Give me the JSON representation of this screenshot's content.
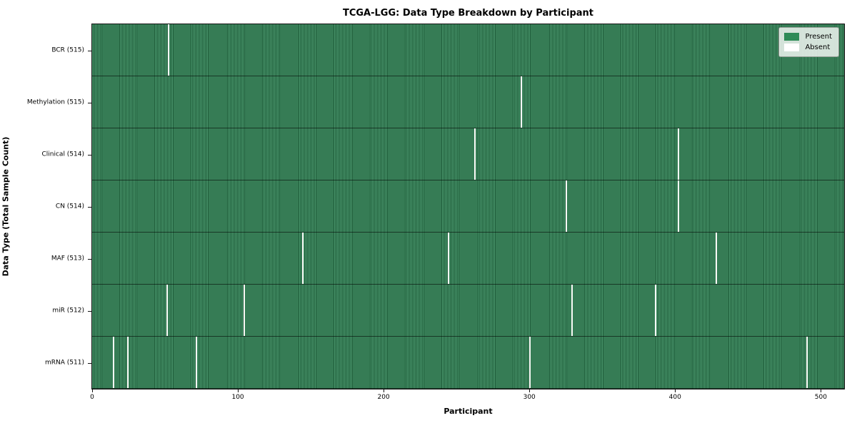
{
  "chart": {
    "title": "TCGA-LGG: Data Type Breakdown by Participant",
    "xlabel": "Participant",
    "ylabel": "Data Type (Total Sample Count)"
  },
  "chart_data": {
    "type": "heatmap",
    "title": "TCGA-LGG: Data Type Breakdown by Participant",
    "xlabel": "Participant",
    "ylabel": "Data Type (Total Sample Count)",
    "n_participants": 516,
    "x_ticks": [
      0,
      100,
      200,
      300,
      400,
      500
    ],
    "legend_position": "upper right",
    "grid": false,
    "legend": [
      {
        "label": "Present",
        "color": "#2e8b57"
      },
      {
        "label": "Absent",
        "color": "#ffffff"
      }
    ],
    "rows": [
      {
        "data_type": "BCR",
        "label": "BCR (515)",
        "present_count": 515,
        "absent_participants": [
          52
        ]
      },
      {
        "data_type": "Methylation",
        "label": "Methylation (515)",
        "present_count": 515,
        "absent_participants": [
          294
        ]
      },
      {
        "data_type": "Clinical",
        "label": "Clinical (514)",
        "present_count": 514,
        "absent_participants": [
          262,
          402
        ]
      },
      {
        "data_type": "CN",
        "label": "CN (514)",
        "present_count": 514,
        "absent_participants": [
          325,
          402
        ]
      },
      {
        "data_type": "MAF",
        "label": "MAF (513)",
        "present_count": 513,
        "absent_participants": [
          144,
          244,
          428
        ]
      },
      {
        "data_type": "miR",
        "label": "miR (512)",
        "present_count": 512,
        "absent_participants": [
          51,
          104,
          329,
          386
        ]
      },
      {
        "data_type": "mRNA",
        "label": "mRNA (511)",
        "present_count": 511,
        "absent_participants": [
          14,
          24,
          71,
          300,
          490
        ]
      }
    ],
    "colors": {
      "present": "#2e8b57",
      "present_stripe_light": "#4e9b71",
      "present_stripe_dark": "#1e5c39",
      "absent": "#ffffff",
      "plot_border": "#141414"
    }
  }
}
